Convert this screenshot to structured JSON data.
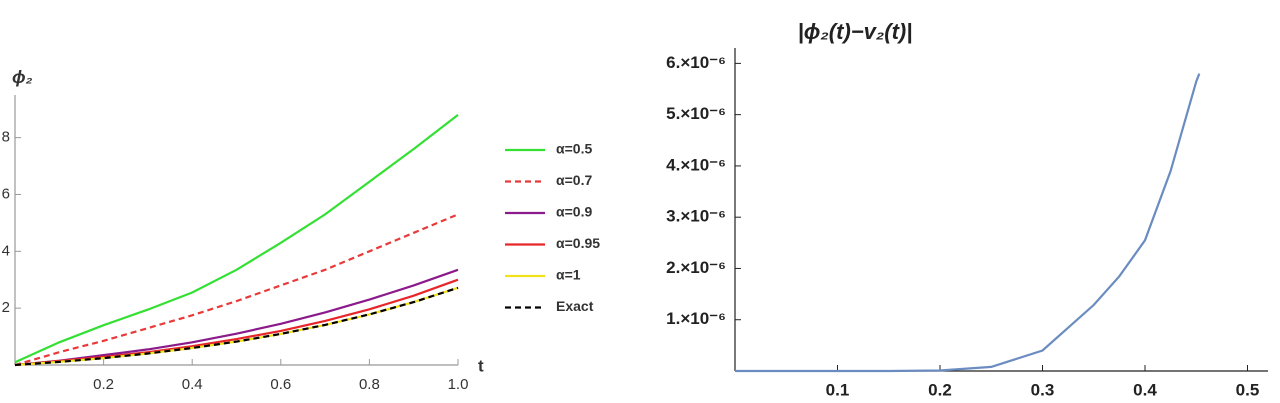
{
  "chart_data": [
    {
      "type": "line",
      "xlabel": "t",
      "ylabel": "ϕ₂",
      "x": [
        0,
        0.1,
        0.2,
        0.3,
        0.4,
        0.5,
        0.6,
        0.7,
        0.8,
        0.9,
        1.0
      ],
      "series": [
        {
          "name": "α=0.5",
          "color": "#33e033",
          "dashed": false,
          "values": [
            0.1,
            0.8,
            1.4,
            1.95,
            2.55,
            3.35,
            4.3,
            5.3,
            6.45,
            7.6,
            8.8
          ]
        },
        {
          "name": "α=0.7",
          "color": "#e83a3a",
          "dashed": true,
          "values": [
            0,
            0.45,
            0.85,
            1.3,
            1.75,
            2.25,
            2.8,
            3.35,
            4.0,
            4.65,
            5.3
          ]
        },
        {
          "name": "α=0.9",
          "color": "#8b1a8b",
          "dashed": false,
          "values": [
            0,
            0.15,
            0.35,
            0.55,
            0.8,
            1.1,
            1.45,
            1.85,
            2.3,
            2.8,
            3.35
          ]
        },
        {
          "name": "α=0.95",
          "color": "#e8262a",
          "dashed": false,
          "values": [
            0,
            0.14,
            0.28,
            0.45,
            0.66,
            0.91,
            1.2,
            1.55,
            1.96,
            2.44,
            3.0
          ]
        },
        {
          "name": "α=1",
          "color": "#f2e21a",
          "dashed": false,
          "values": [
            0,
            0.11,
            0.244,
            0.405,
            0.597,
            0.824,
            1.093,
            1.41,
            1.78,
            2.214,
            2.718
          ]
        },
        {
          "name": "Exact",
          "color": "#000000",
          "dashed": true,
          "values": [
            0,
            0.11,
            0.244,
            0.405,
            0.597,
            0.824,
            1.093,
            1.41,
            1.78,
            2.214,
            2.718
          ]
        }
      ],
      "xlim": [
        0,
        1.0
      ],
      "ylim": [
        0,
        9.5
      ],
      "xticks": [
        0.2,
        0.4,
        0.6,
        0.8,
        {
          "value": 1.0,
          "label": "1.0"
        }
      ],
      "yticks": [
        2,
        4,
        6,
        8
      ],
      "legend": "right"
    },
    {
      "type": "line",
      "title": "|ϕ₂(t)−v₂(t)|",
      "x": [
        0,
        0.05,
        0.1,
        0.15,
        0.2,
        0.25,
        0.3,
        0.35,
        0.375,
        0.4,
        0.425,
        0.45,
        0.453
      ],
      "series": [
        {
          "color": "#6b8cc0",
          "dashed": false,
          "values": [
            0,
            0,
            0,
            0,
            1e-08,
            8e-08,
            4e-07,
            1.29e-06,
            1.85e-06,
            2.55e-06,
            3.9e-06,
            5.65e-06,
            5.8e-06
          ]
        }
      ],
      "xlim": [
        0,
        0.52
      ],
      "ylim": [
        0,
        6.3e-06
      ],
      "xticks": [
        0.1,
        0.2,
        0.3,
        0.4,
        0.5
      ],
      "yticks": [
        {
          "value": 1e-06,
          "label": "1.×10⁻⁶"
        },
        {
          "value": 2e-06,
          "label": "2.×10⁻⁶"
        },
        {
          "value": 3e-06,
          "label": "3.×10⁻⁶"
        },
        {
          "value": 4e-06,
          "label": "4.×10⁻⁶"
        },
        {
          "value": 5e-06,
          "label": "5.×10⁻⁶"
        },
        {
          "value": 6e-06,
          "label": "6.×10⁻⁶"
        }
      ]
    }
  ]
}
